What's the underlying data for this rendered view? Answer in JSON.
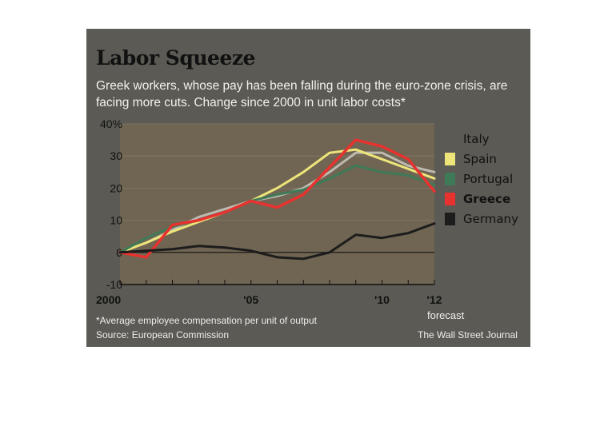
{
  "header": {
    "title": "Labor Squeeze",
    "subtitle": "Greek workers, whose pay has been falling during the euro-zone crisis, are facing more cuts. Change since 2000 in unit labor costs*"
  },
  "footer": {
    "footnote": "*Average employee compensation per unit of output",
    "source": "Source: European Commission",
    "credit": "The Wall Street Journal"
  },
  "colors": {
    "panel": "#5b5a54",
    "plot_area": "#6f6552",
    "axis_text": "#111111"
  },
  "chart_data": {
    "type": "line",
    "title": "Labor Squeeze",
    "xlabel": "",
    "ylabel": "",
    "xlim": [
      2000,
      2012
    ],
    "ylim": [
      -10,
      40
    ],
    "x_ticks": [
      2000,
      2001,
      2002,
      2003,
      2004,
      2005,
      2006,
      2007,
      2008,
      2009,
      2010,
      2011,
      2012
    ],
    "x_tick_labels": [
      {
        "x": 2000,
        "label": "2000"
      },
      {
        "x": 2005,
        "label": "'05"
      },
      {
        "x": 2010,
        "label": "'10"
      },
      {
        "x": 2012,
        "label": "'12"
      }
    ],
    "forecast_label": "forecast",
    "y_ticks": [
      {
        "y": 40,
        "label": "40%"
      },
      {
        "y": 30,
        "label": "30"
      },
      {
        "y": 20,
        "label": "20"
      },
      {
        "y": 10,
        "label": "10"
      },
      {
        "y": 0,
        "label": "0"
      },
      {
        "y": -10,
        "label": "-10"
      }
    ],
    "legend_position": "right",
    "series": [
      {
        "name": "Italy",
        "color": "#ffffff",
        "swatch": "none",
        "x": [
          2000,
          2001,
          2002,
          2003,
          2004,
          2005,
          2006,
          2007,
          2008,
          2009,
          2010,
          2011,
          2012
        ],
        "values": [
          0,
          3,
          7,
          11,
          13.5,
          16,
          17.5,
          20,
          25,
          31,
          31,
          27,
          25
        ]
      },
      {
        "name": "Spain",
        "color": "#ede57a",
        "x": [
          2000,
          2001,
          2002,
          2003,
          2004,
          2005,
          2006,
          2007,
          2008,
          2009,
          2010,
          2011,
          2012
        ],
        "values": [
          0,
          3,
          6.5,
          9.5,
          12.5,
          16,
          20,
          25,
          31,
          32,
          29,
          26,
          23
        ]
      },
      {
        "name": "Portugal",
        "color": "#3f7a58",
        "x": [
          2000,
          2001,
          2002,
          2003,
          2004,
          2005,
          2006,
          2007,
          2008,
          2009,
          2010,
          2011,
          2012
        ],
        "values": [
          0,
          4.5,
          8,
          10,
          12.5,
          16,
          18,
          19.5,
          23,
          27,
          25,
          24,
          21
        ]
      },
      {
        "name": "Greece",
        "color": "#e8322f",
        "bold": true,
        "x": [
          2000,
          2001,
          2002,
          2003,
          2004,
          2005,
          2006,
          2007,
          2008,
          2009,
          2010,
          2011,
          2012
        ],
        "values": [
          0,
          -1.5,
          8.5,
          10,
          12.5,
          16,
          14,
          18,
          26.5,
          35,
          33,
          29,
          19
        ]
      },
      {
        "name": "Germany",
        "color": "#1c1c1c",
        "x": [
          2000,
          2001,
          2002,
          2003,
          2004,
          2005,
          2006,
          2007,
          2008,
          2009,
          2010,
          2011,
          2012
        ],
        "values": [
          0,
          0.5,
          1,
          2,
          1.5,
          0.5,
          -1.5,
          -2,
          0,
          5.5,
          4.5,
          6,
          9
        ]
      }
    ]
  }
}
